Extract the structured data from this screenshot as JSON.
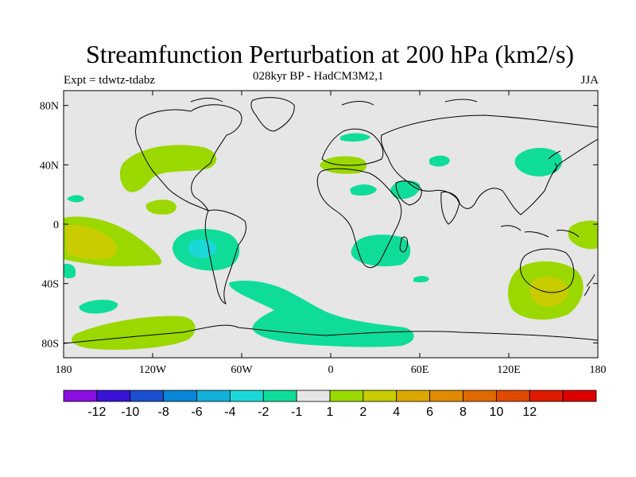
{
  "title": "Streamfunction Perturbation at 200 hPa (km2/s)",
  "subtitle": "028kyr BP - HadCM3M2,1",
  "experiment": "Expt = tdwtz-tdabz",
  "season": "JJA",
  "map": {
    "projection": "cylindrical equidistant",
    "lon_range": [
      -180,
      180
    ],
    "lat_range": [
      -90,
      90
    ],
    "background_color": "#e6e6e6",
    "coastline_color": "#000000",
    "lat_ticks": [
      {
        "value": 80,
        "label": "80N"
      },
      {
        "value": 40,
        "label": "40N"
      },
      {
        "value": 0,
        "label": "0"
      },
      {
        "value": -40,
        "label": "40S"
      },
      {
        "value": -80,
        "label": "80S"
      }
    ],
    "lon_ticks": [
      {
        "value": -180,
        "label": "180"
      },
      {
        "value": -120,
        "label": "120W"
      },
      {
        "value": -60,
        "label": "60W"
      },
      {
        "value": 0,
        "label": "0"
      },
      {
        "value": 60,
        "label": "60E"
      },
      {
        "value": 120,
        "label": "120E"
      },
      {
        "value": 180,
        "label": "180"
      }
    ]
  },
  "colorbar": {
    "colors": [
      "#8a0fe0",
      "#3a13d8",
      "#1a4fd0",
      "#0a86d8",
      "#12b0d8",
      "#1bd8d8",
      "#10dc9a",
      "#e6e6e6",
      "#9ad800",
      "#c9cc00",
      "#dba800",
      "#e08a00",
      "#e06a00",
      "#e04a00",
      "#e01a00",
      "#dd0000"
    ],
    "labels": [
      "-12",
      "-10",
      "-8",
      "-6",
      "-4",
      "-2",
      "-1",
      "1",
      "2",
      "4",
      "6",
      "8",
      "10",
      "12"
    ]
  },
  "chart_data": {
    "type": "heatmap",
    "title": "Streamfunction Perturbation at 200 hPa (km2/s)",
    "units": "km2/s",
    "levels": [
      -12,
      -10,
      -8,
      -6,
      -4,
      -2,
      -1,
      1,
      2,
      4,
      6,
      8,
      10,
      12
    ],
    "anomaly_regions": [
      {
        "name": "south-pacific-positive",
        "lon": [
          -180,
          -140
        ],
        "lat": [
          -30,
          5
        ],
        "value_range": [
          2,
          4
        ]
      },
      {
        "name": "south-america-negative",
        "lon": [
          -100,
          -60
        ],
        "lat": [
          -35,
          -5
        ],
        "value_range": [
          -4,
          -1
        ]
      },
      {
        "name": "southern-ocean-negative",
        "lon": [
          -70,
          60
        ],
        "lat": [
          -80,
          -45
        ],
        "value_range": [
          -2,
          -1
        ]
      },
      {
        "name": "south-africa-negative",
        "lon": [
          15,
          50
        ],
        "lat": [
          -30,
          -15
        ],
        "value_range": [
          -2,
          -1
        ]
      },
      {
        "name": "australia-positive",
        "lon": [
          110,
          165
        ],
        "lat": [
          -65,
          -25
        ],
        "value_range": [
          2,
          4
        ]
      },
      {
        "name": "north-america-positive",
        "lon": [
          -140,
          -95
        ],
        "lat": [
          25,
          50
        ],
        "value_range": [
          1,
          2
        ]
      },
      {
        "name": "europe-positive",
        "lon": [
          -5,
          20
        ],
        "lat": [
          38,
          46
        ],
        "value_range": [
          1,
          2
        ]
      },
      {
        "name": "east-asia-negative",
        "lon": [
          120,
          150
        ],
        "lat": [
          35,
          50
        ],
        "value_range": [
          -2,
          -1
        ]
      },
      {
        "name": "south-pacific-high-lat-positive",
        "lon": [
          -180,
          -95
        ],
        "lat": [
          -82,
          -60
        ],
        "value_range": [
          1,
          2
        ]
      }
    ]
  }
}
